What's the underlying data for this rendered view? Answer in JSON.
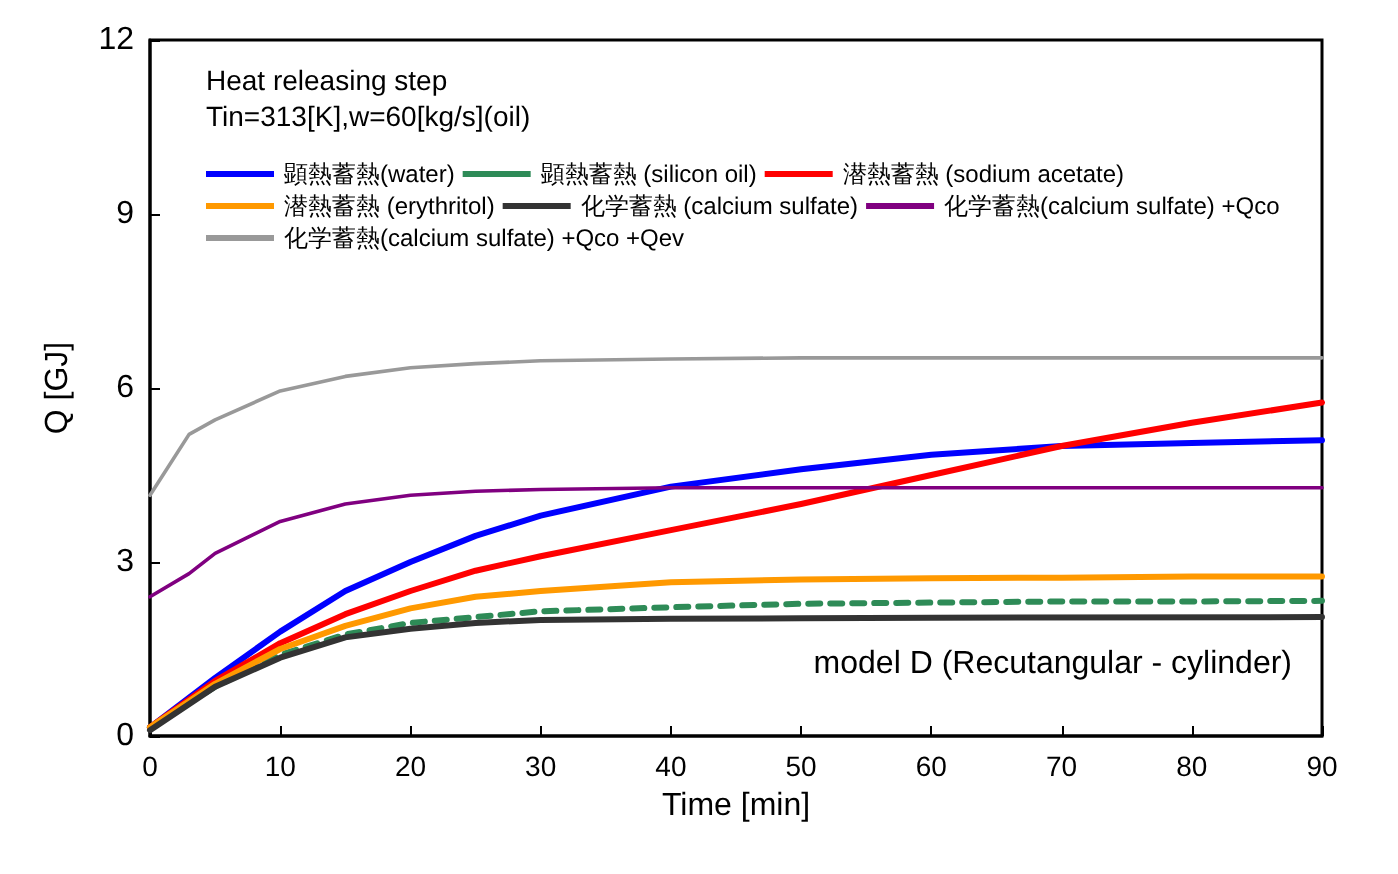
{
  "chart_data": {
    "type": "line",
    "title": "Heat releasing step",
    "subtitle": "Tin=313[K],w=60[kg/s](oil)",
    "xlabel": "Time [min]",
    "ylabel": "Q [GJ]",
    "annotations": [
      "model D (Recutangular - cylinder)"
    ],
    "xlim": [
      0,
      90
    ],
    "xticks": [
      0,
      10,
      20,
      30,
      40,
      50,
      60,
      70,
      80,
      90
    ],
    "ylim": [
      0,
      12
    ],
    "yticks": [
      0,
      3,
      6,
      9,
      12
    ],
    "grid": false,
    "legend": "top left",
    "marker": "none",
    "series": [
      {
        "name": "顕熱蓄熱(water)",
        "color": "#0000ff",
        "line_style": "solid",
        "x": [
          0,
          5,
          10,
          15,
          20,
          25,
          30,
          40,
          50,
          60,
          70,
          80,
          90
        ],
        "values": [
          0.15,
          1.0,
          1.8,
          2.5,
          3.0,
          3.45,
          3.8,
          4.3,
          4.6,
          4.85,
          5.0,
          5.05,
          5.1
        ]
      },
      {
        "name": "顕熱蓄熱 (silicon oil)",
        "color": "#2e8b57",
        "line_style": "dashed",
        "x": [
          0,
          5,
          10,
          15,
          20,
          25,
          30,
          40,
          50,
          60,
          70,
          80,
          90
        ],
        "values": [
          0.15,
          0.85,
          1.4,
          1.75,
          1.95,
          2.05,
          2.15,
          2.22,
          2.28,
          2.3,
          2.32,
          2.32,
          2.33
        ]
      },
      {
        "name": "潜熱蓄熱 (sodium acetate)",
        "color": "#ff0000",
        "line_style": "solid",
        "x": [
          0,
          5,
          10,
          15,
          20,
          25,
          30,
          40,
          50,
          60,
          70,
          80,
          90
        ],
        "values": [
          0.15,
          0.95,
          1.6,
          2.1,
          2.5,
          2.85,
          3.1,
          3.55,
          4.0,
          4.5,
          5.0,
          5.4,
          5.75
        ]
      },
      {
        "name": "潜熱蓄熱 (erythritol)",
        "color": "#ff9900",
        "line_style": "solid",
        "x": [
          0,
          5,
          10,
          15,
          20,
          25,
          30,
          40,
          50,
          60,
          70,
          80,
          90
        ],
        "values": [
          0.15,
          0.9,
          1.5,
          1.9,
          2.2,
          2.4,
          2.5,
          2.65,
          2.7,
          2.72,
          2.73,
          2.75,
          2.75
        ]
      },
      {
        "name": "化学蓄熱 (calcium sulfate)",
        "color": "#333333",
        "line_style": "solid",
        "x": [
          0,
          5,
          10,
          15,
          20,
          25,
          30,
          40,
          50,
          60,
          90
        ],
        "values": [
          0.1,
          0.85,
          1.35,
          1.7,
          1.85,
          1.95,
          2.0,
          2.02,
          2.03,
          2.04,
          2.05
        ]
      },
      {
        "name": "化学蓄熱(calcium sulfate) +Qco",
        "color": "#800080",
        "line_style": "solid",
        "x": [
          0,
          3,
          5,
          10,
          15,
          20,
          25,
          30,
          40,
          90
        ],
        "values": [
          2.4,
          2.8,
          3.15,
          3.7,
          4.0,
          4.15,
          4.22,
          4.25,
          4.28,
          4.28
        ]
      },
      {
        "name": "化学蓄熱(calcium sulfate) +Qco +Qev",
        "color": "#999999",
        "line_style": "solid",
        "x": [
          0,
          3,
          5,
          10,
          15,
          20,
          25,
          30,
          40,
          50,
          90
        ],
        "values": [
          4.15,
          5.2,
          5.45,
          5.95,
          6.2,
          6.35,
          6.42,
          6.47,
          6.5,
          6.52,
          6.52
        ]
      }
    ]
  }
}
